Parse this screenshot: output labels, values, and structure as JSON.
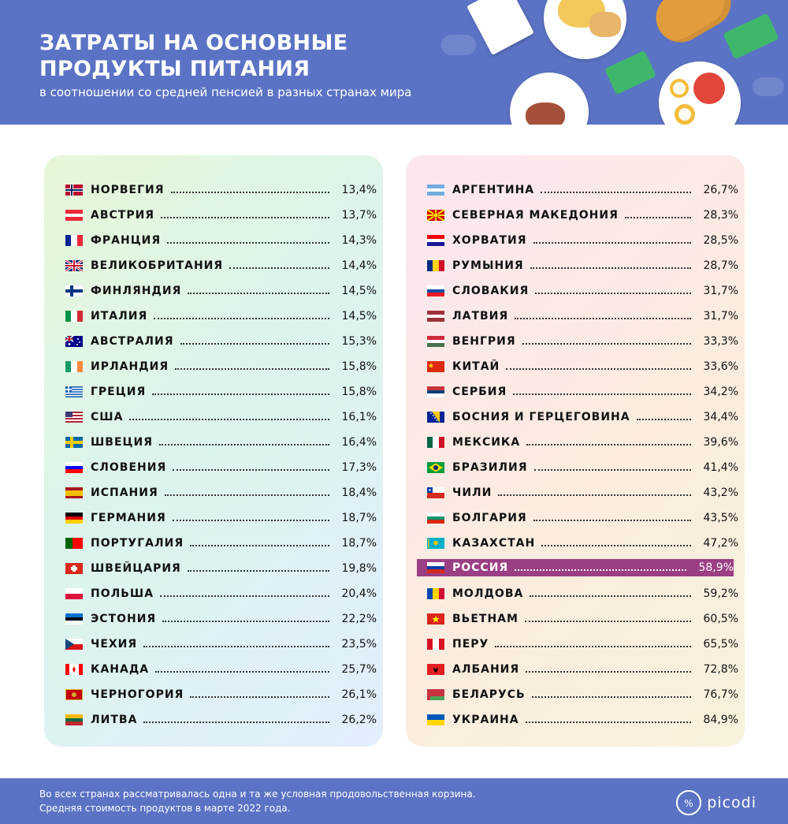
{
  "header": {
    "title_line1": "ЗАТРАТЫ НА ОСНОВНЫЕ",
    "title_line2": "ПРОДУКТЫ ПИТАНИЯ",
    "subtitle": "в соотношении со средней пенсией в разных странах мира"
  },
  "colors": {
    "header_bg": "#5b73c4",
    "highlight": "#9b3e84"
  },
  "highlight_country": "РОССИЯ",
  "footer": {
    "note_line1": "Во всех странах рассматривалась одна и та же условная продовольственная корзина.",
    "note_line2": "Средняя стоимость продуктов в марте 2022 года.",
    "logo": "picodi"
  },
  "chart_data": {
    "type": "table",
    "title": "ЗАТРАТЫ НА ОСНОВНЫЕ ПРОДУКТЫ ПИТАНИЯ",
    "subtitle": "в соотношении со средней пенсией в разных странах мира",
    "unit": "%",
    "columns": [
      [
        {
          "country": "НОРВЕГИЯ",
          "value": "13,4%",
          "flag": "norway"
        },
        {
          "country": "АВСТРИЯ",
          "value": "13,7%",
          "flag": "austria"
        },
        {
          "country": "ФРАНЦИЯ",
          "value": "14,3%",
          "flag": "france"
        },
        {
          "country": "ВЕЛИКОБРИТАНИЯ",
          "value": "14,4%",
          "flag": "uk"
        },
        {
          "country": "ФИНЛЯНДИЯ",
          "value": "14,5%",
          "flag": "finland"
        },
        {
          "country": "ИТАЛИЯ",
          "value": "14,5%",
          "flag": "italy"
        },
        {
          "country": "АВСТРАЛИЯ",
          "value": "15,3%",
          "flag": "australia"
        },
        {
          "country": "ИРЛАНДИЯ",
          "value": "15,8%",
          "flag": "ireland"
        },
        {
          "country": "ГРЕЦИЯ",
          "value": "15,8%",
          "flag": "greece"
        },
        {
          "country": "США",
          "value": "16,1%",
          "flag": "usa"
        },
        {
          "country": "ШВЕЦИЯ",
          "value": "16,4%",
          "flag": "sweden"
        },
        {
          "country": "СЛОВЕНИЯ",
          "value": "17,3%",
          "flag": "slovenia"
        },
        {
          "country": "ИСПАНИЯ",
          "value": "18,4%",
          "flag": "spain"
        },
        {
          "country": "ГЕРМАНИЯ",
          "value": "18,7%",
          "flag": "germany"
        },
        {
          "country": "ПОРТУГАЛИЯ",
          "value": "18,7%",
          "flag": "portugal"
        },
        {
          "country": "ШВЕЙЦАРИЯ",
          "value": "19,8%",
          "flag": "switzerland"
        },
        {
          "country": "ПОЛЬША",
          "value": "20,4%",
          "flag": "poland"
        },
        {
          "country": "ЭСТОНИЯ",
          "value": "22,2%",
          "flag": "estonia"
        },
        {
          "country": "ЧЕХИЯ",
          "value": "23,5%",
          "flag": "czechia"
        },
        {
          "country": "КАНАДА",
          "value": "25,7%",
          "flag": "canada"
        },
        {
          "country": "ЧЕРНОГОРИЯ",
          "value": "26,1%",
          "flag": "montenegro"
        },
        {
          "country": "ЛИТВА",
          "value": "26,2%",
          "flag": "lithuania"
        }
      ],
      [
        {
          "country": "АРГЕНТИНА",
          "value": "26,7%",
          "flag": "argentina"
        },
        {
          "country": "СЕВЕРНАЯ МАКЕДОНИЯ",
          "value": "28,3%",
          "flag": "north-macedonia"
        },
        {
          "country": "ХОРВАТИЯ",
          "value": "28,5%",
          "flag": "croatia"
        },
        {
          "country": "РУМЫНИЯ",
          "value": "28,7%",
          "flag": "romania"
        },
        {
          "country": "СЛОВАКИЯ",
          "value": "31,7%",
          "flag": "slovakia"
        },
        {
          "country": "ЛАТВИЯ",
          "value": "31,7%",
          "flag": "latvia"
        },
        {
          "country": "ВЕНГРИЯ",
          "value": "33,3%",
          "flag": "hungary"
        },
        {
          "country": "КИТАЙ",
          "value": "33,6%",
          "flag": "china"
        },
        {
          "country": "СЕРБИЯ",
          "value": "34,2%",
          "flag": "serbia"
        },
        {
          "country": "БОСНИЯ И ГЕРЦЕГОВИНА",
          "value": "34,4%",
          "flag": "bosnia"
        },
        {
          "country": "МЕКСИКА",
          "value": "39,6%",
          "flag": "mexico"
        },
        {
          "country": "БРАЗИЛИЯ",
          "value": "41,4%",
          "flag": "brazil"
        },
        {
          "country": "ЧИЛИ",
          "value": "43,2%",
          "flag": "chile"
        },
        {
          "country": "БОЛГАРИЯ",
          "value": "43,5%",
          "flag": "bulgaria"
        },
        {
          "country": "КАЗАХСТАН",
          "value": "47,2%",
          "flag": "kazakhstan"
        },
        {
          "country": "РОССИЯ",
          "value": "58,9%",
          "flag": "russia"
        },
        {
          "country": "МОЛДОВА",
          "value": "59,2%",
          "flag": "moldova"
        },
        {
          "country": "ВЬЕТНАМ",
          "value": "60,5%",
          "flag": "vietnam"
        },
        {
          "country": "ПЕРУ",
          "value": "65,5%",
          "flag": "peru"
        },
        {
          "country": "АЛБАНИЯ",
          "value": "72,8%",
          "flag": "albania"
        },
        {
          "country": "БЕЛАРУСЬ",
          "value": "76,7%",
          "flag": "belarus"
        },
        {
          "country": "УКРАИНА",
          "value": "84,9%",
          "flag": "ukraine"
        }
      ]
    ]
  }
}
